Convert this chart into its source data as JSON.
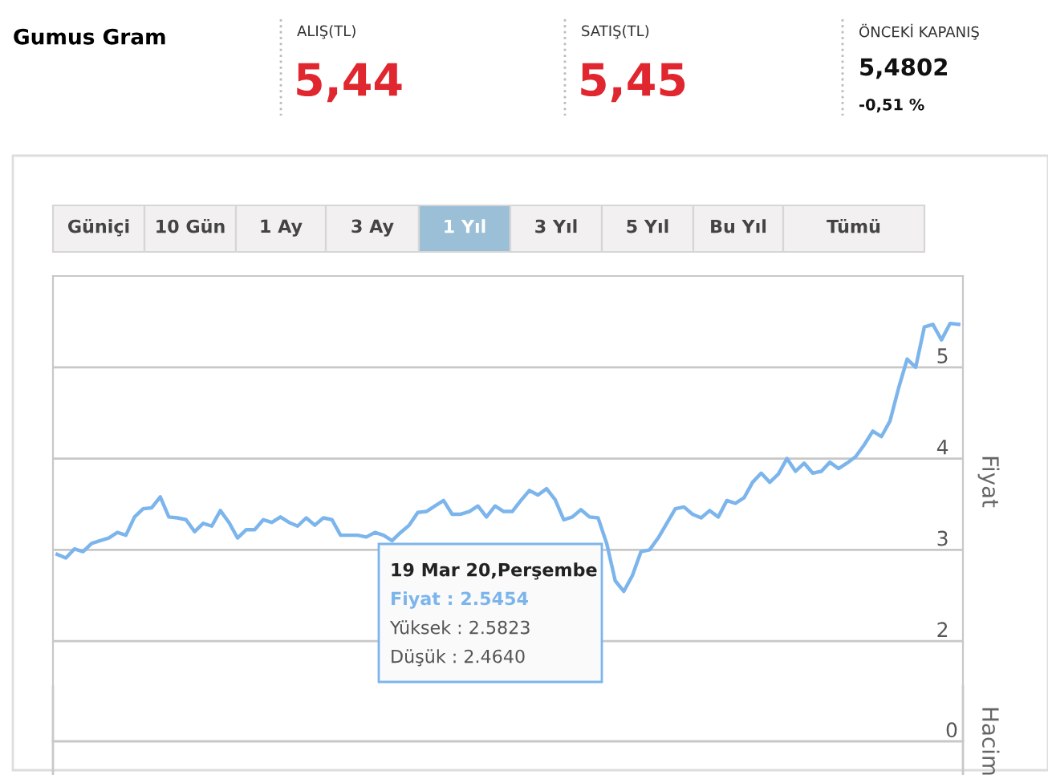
{
  "chart_data": {
    "type": "line",
    "title": "Gumus Gram",
    "ylabel": "Fiyat",
    "categories": [
      null,
      null,
      null,
      null,
      null,
      null,
      null,
      null,
      null,
      null,
      null,
      null,
      null,
      null,
      null,
      null,
      null,
      null,
      null,
      null,
      null,
      null,
      null,
      null,
      null,
      null,
      null,
      null,
      null,
      null,
      null,
      null,
      null,
      null,
      null,
      null,
      null,
      null,
      null,
      null,
      null,
      null,
      null,
      null,
      null,
      null,
      null,
      null,
      null,
      null,
      null,
      null,
      null,
      null,
      null,
      null,
      null,
      null,
      null,
      null,
      null,
      null,
      null,
      null,
      null,
      null,
      null,
      null,
      null,
      null,
      null,
      null,
      null,
      null,
      null,
      null,
      null,
      null,
      null,
      null,
      null,
      null,
      null,
      null,
      null,
      null,
      null,
      null,
      null,
      null,
      null,
      null,
      null,
      null,
      null,
      null,
      null,
      null,
      null,
      null,
      null,
      null,
      null,
      null,
      null,
      null
    ],
    "series": [
      {
        "color": "#7cb5ec",
        "values": [
          2.95,
          2.91,
          3.01,
          2.98,
          3.07,
          3.1,
          3.13,
          3.19,
          3.16,
          3.36,
          3.45,
          3.46,
          3.58,
          3.36,
          3.35,
          3.33,
          3.2,
          3.29,
          3.26,
          3.43,
          3.3,
          3.13,
          3.22,
          3.22,
          3.33,
          3.3,
          3.36,
          3.3,
          3.26,
          3.35,
          3.27,
          3.35,
          3.33,
          3.16,
          3.16,
          3.16,
          3.14,
          3.19,
          3.16,
          3.1,
          3.19,
          3.27,
          3.41,
          3.42,
          3.48,
          3.54,
          3.39,
          3.39,
          3.42,
          3.48,
          3.36,
          3.48,
          3.42,
          3.42,
          3.54,
          3.65,
          3.6,
          3.67,
          3.55,
          3.33,
          3.36,
          3.44,
          3.36,
          3.35,
          3.07,
          2.66,
          2.5454,
          2.72,
          2.98,
          3.0,
          3.13,
          3.29,
          3.45,
          3.47,
          3.39,
          3.35,
          3.43,
          3.36,
          3.54,
          3.51,
          3.57,
          3.74,
          3.84,
          3.74,
          3.83,
          4.0,
          3.86,
          3.95,
          3.84,
          3.86,
          3.96,
          3.89,
          3.95,
          4.02,
          4.15,
          4.3,
          4.24,
          4.41,
          4.77,
          5.09,
          5.0,
          5.44,
          5.47,
          5.3,
          5.48,
          5.47
        ]
      }
    ],
    "ylim": [
      1.5,
      6.0
    ],
    "yticks": [
      2,
      3,
      4,
      5
    ],
    "grid": "y",
    "tick_labels": "y",
    "legend": false,
    "annotations": [
      "ALIŞ(TL)",
      "5,44",
      "SATIŞ(TL)",
      "5,45",
      "ÖNCEKİ KAPANIŞ",
      "5,4802",
      "-0,51 %",
      "Güniçi",
      "10 Gün",
      "1 Ay",
      "3 Ay",
      "1 Yıl",
      "3 Yıl",
      "5 Yıl",
      "Bu Yıl",
      "Tümü",
      "19 Mar 20,Perşembe",
      "Fiyat : 2.5454",
      "Yüksek : 2.5823",
      "Düşük : 2.4640",
      "0",
      "Hacim"
    ]
  }
}
